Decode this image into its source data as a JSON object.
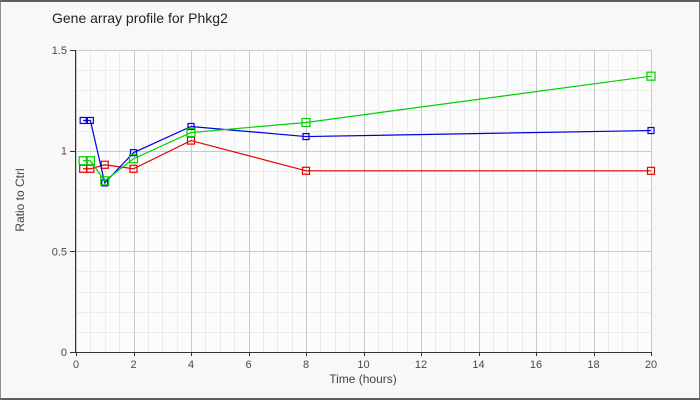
{
  "frame": {
    "border_color": "#5f5f5f",
    "outer_background": "#f8f8f8"
  },
  "chart_data": {
    "type": "line",
    "title": "Gene array profile for Phkg2",
    "xlabel": "Time (hours)",
    "ylabel": "Ratio to Ctrl",
    "xlim": [
      0,
      20
    ],
    "ylim": [
      0,
      1.5
    ],
    "x_major_ticks": [
      0,
      2,
      4,
      6,
      8,
      10,
      12,
      14,
      16,
      18,
      20
    ],
    "y_major_ticks": [
      0,
      0.5,
      1,
      1.5
    ],
    "x_minor_step": 0.5,
    "y_minor_step": 0.1,
    "grid": "on",
    "legend": "none",
    "plot_background": "#fcfcfc",
    "minor_grid_color": "#ececec",
    "major_grid_color": "#c9c9c9",
    "axis_color": "#333333",
    "x": [
      0.25,
      0.5,
      1,
      2,
      4,
      8,
      20
    ],
    "series": [
      {
        "name": "red-series",
        "color": "#e60000",
        "marker": "open-square",
        "marker_size": 7,
        "values": [
          0.91,
          0.91,
          0.93,
          0.91,
          1.05,
          0.9,
          0.9
        ]
      },
      {
        "name": "blue-series",
        "color": "#0000dd",
        "marker": "open-square",
        "marker_size": 6,
        "values": [
          1.15,
          1.15,
          0.84,
          0.99,
          1.12,
          1.07,
          1.1
        ]
      },
      {
        "name": "green-series",
        "color": "#00d000",
        "marker": "open-square",
        "marker_size": 8,
        "values": [
          0.95,
          0.95,
          0.85,
          0.96,
          1.09,
          1.14,
          1.37
        ]
      }
    ]
  }
}
